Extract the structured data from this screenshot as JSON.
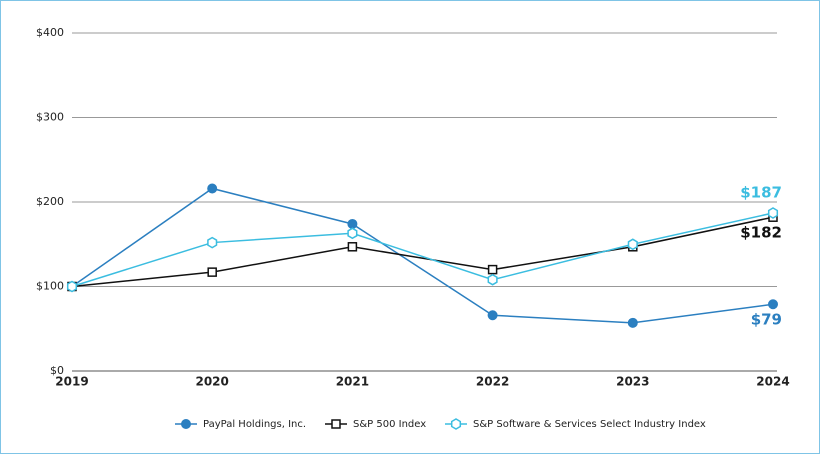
{
  "chart_data": {
    "type": "line",
    "categories": [
      "2019",
      "2020",
      "2021",
      "2022",
      "2023",
      "2024"
    ],
    "series": [
      {
        "name": "PayPal Holdings, Inc.",
        "color": "#2b7fc0",
        "marker": "circle",
        "values": [
          100,
          216,
          174,
          66,
          57,
          79
        ],
        "value_labels": [
          null,
          null,
          null,
          null,
          null,
          "$79"
        ]
      },
      {
        "name": "S&P 500 Index",
        "color": "#111111",
        "marker": "square",
        "values": [
          100,
          117,
          147,
          120,
          147,
          182
        ],
        "value_labels": [
          null,
          null,
          null,
          null,
          null,
          "$182"
        ]
      },
      {
        "name": "S&P Software & Services Select Industry Index",
        "color": "#3bbde0",
        "marker": "hexagon",
        "values": [
          100,
          152,
          163,
          108,
          150,
          187
        ],
        "value_labels": [
          null,
          null,
          null,
          null,
          null,
          "$187"
        ]
      }
    ],
    "ylim": [
      0,
      400
    ],
    "yticks": [
      {
        "value": 0,
        "label": "$0"
      },
      {
        "value": 100,
        "label": "$100"
      },
      {
        "value": 200,
        "label": "$200"
      },
      {
        "value": 300,
        "label": "$300"
      },
      {
        "value": 400,
        "label": "$400"
      }
    ],
    "grid": true
  }
}
